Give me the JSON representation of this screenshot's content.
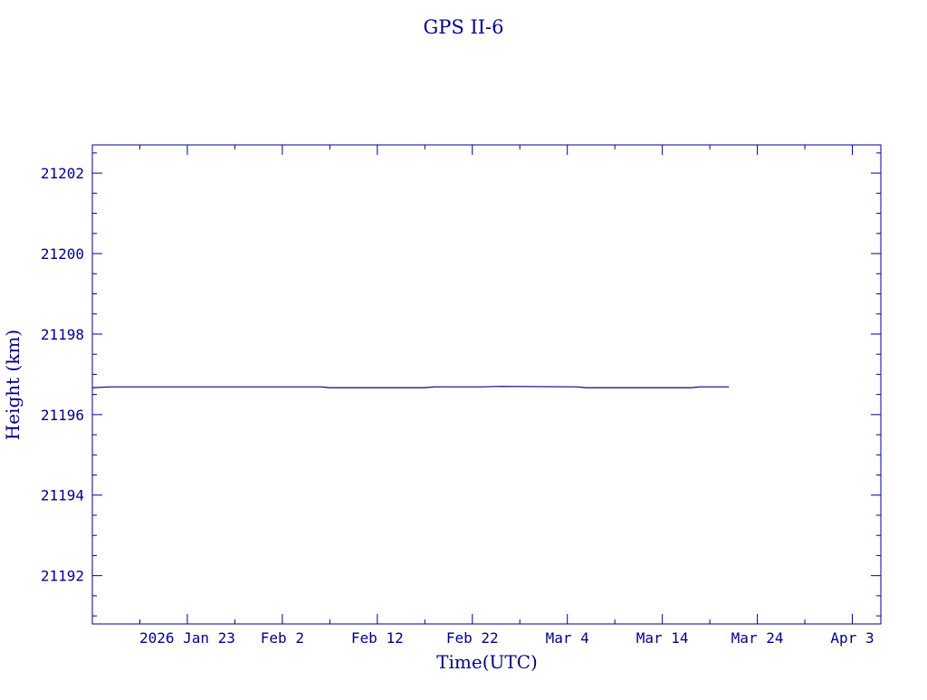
{
  "chart_data": {
    "type": "line",
    "title": "GPS II-6",
    "xlabel": "Time(UTC)",
    "ylabel": "Height (km)",
    "color": "#00008b",
    "x_ticks": [
      "2026 Jan 23",
      "Feb  2",
      "Feb 12",
      "Feb 22",
      "Mar  4",
      "Mar 14",
      "Mar 24",
      "Apr  3"
    ],
    "x_tick_dates": [
      "2026-01-23",
      "2026-02-02",
      "2026-02-12",
      "2026-02-22",
      "2026-03-04",
      "2026-03-14",
      "2026-03-24",
      "2026-04-03"
    ],
    "y_ticks": [
      "21192",
      "21194",
      "21196",
      "21198",
      "21200",
      "21202"
    ],
    "xlim": [
      "2026-01-13",
      "2026-04-06"
    ],
    "ylim": [
      21190.8,
      21202.7
    ],
    "grid": false,
    "series": [
      {
        "x": [
          "2026-01-13",
          "2026-01-15",
          "2026-02-06",
          "2026-02-07",
          "2026-02-17",
          "2026-02-18",
          "2026-02-23",
          "2026-02-25",
          "2026-03-05",
          "2026-03-06",
          "2026-03-17",
          "2026-03-18",
          "2026-03-21"
        ],
        "y": [
          21196.67,
          21196.69,
          21196.69,
          21196.67,
          21196.67,
          21196.69,
          21196.69,
          21196.7,
          21196.69,
          21196.67,
          21196.67,
          21196.69,
          21196.69
        ]
      }
    ]
  }
}
